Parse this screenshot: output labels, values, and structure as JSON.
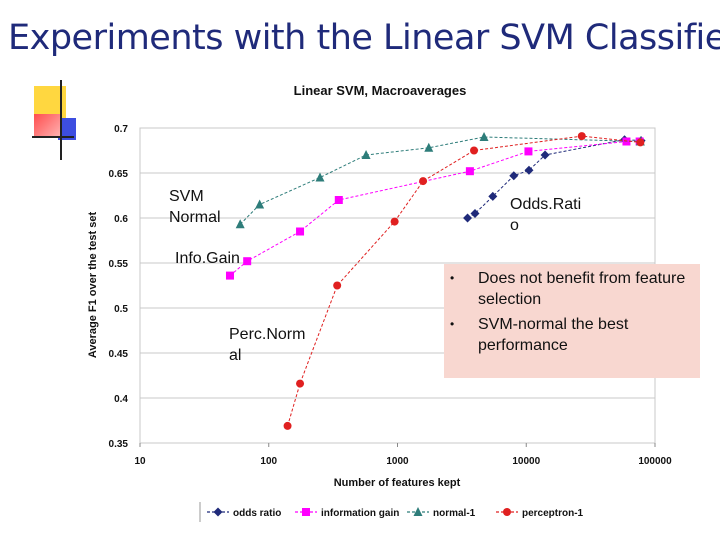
{
  "slide": {
    "title": "Experiments with the Linear SVM Classifier",
    "bullets": [
      "Does not benefit from feature selection",
      "SVM-normal the best performance"
    ],
    "annotations": {
      "svm_normal": "SVM\nNormal",
      "odds_ratio": "Odds.Rati\no",
      "info_gain": "Info.Gain",
      "perc_norm": "Perc.Norm\nal"
    }
  },
  "chart_data": {
    "type": "line",
    "title": "Linear SVM, Macroaverages",
    "xlabel": "Number of features kept",
    "ylabel": "Average F1 over the test set",
    "xscale": "log",
    "xlim": [
      10,
      100000
    ],
    "ylim": [
      0.35,
      0.7
    ],
    "xticks": [
      "10",
      "100",
      "1000",
      "10000",
      "100000"
    ],
    "yticks": [
      "0.35",
      "0.4",
      "0.45",
      "0.5",
      "0.55",
      "0.6",
      "0.65",
      "0.7"
    ],
    "grid": "horizontal",
    "legend_position": "bottom",
    "series": [
      {
        "name": "odds ratio",
        "color": "#1f2a7a",
        "marker": "diamond",
        "points": [
          [
            3500,
            0.6
          ],
          [
            4000,
            0.605
          ],
          [
            5500,
            0.624
          ],
          [
            8000,
            0.647
          ],
          [
            10500,
            0.653
          ],
          [
            14000,
            0.67
          ],
          [
            58000,
            0.687
          ],
          [
            78000,
            0.686
          ]
        ]
      },
      {
        "name": "information gain",
        "color": "#ff00ff",
        "marker": "square",
        "points": [
          [
            50,
            0.536
          ],
          [
            68,
            0.552
          ],
          [
            175,
            0.585
          ],
          [
            350,
            0.62
          ],
          [
            3650,
            0.652
          ],
          [
            10400,
            0.674
          ],
          [
            60000,
            0.685
          ],
          [
            76000,
            0.685
          ]
        ]
      },
      {
        "name": "normal-1",
        "color": "#2e7d7a",
        "marker": "triangle",
        "points": [
          [
            60,
            0.593
          ],
          [
            85,
            0.615
          ],
          [
            250,
            0.645
          ],
          [
            570,
            0.67
          ],
          [
            1750,
            0.678
          ],
          [
            4700,
            0.69
          ],
          [
            77000,
            0.685
          ]
        ]
      },
      {
        "name": "perceptron-1",
        "color": "#e02020",
        "marker": "circle",
        "points": [
          [
            140,
            0.369
          ],
          [
            175,
            0.416
          ],
          [
            340,
            0.525
          ],
          [
            950,
            0.596
          ],
          [
            1580,
            0.641
          ],
          [
            3930,
            0.675
          ],
          [
            27000,
            0.691
          ],
          [
            77000,
            0.684
          ]
        ]
      }
    ]
  }
}
